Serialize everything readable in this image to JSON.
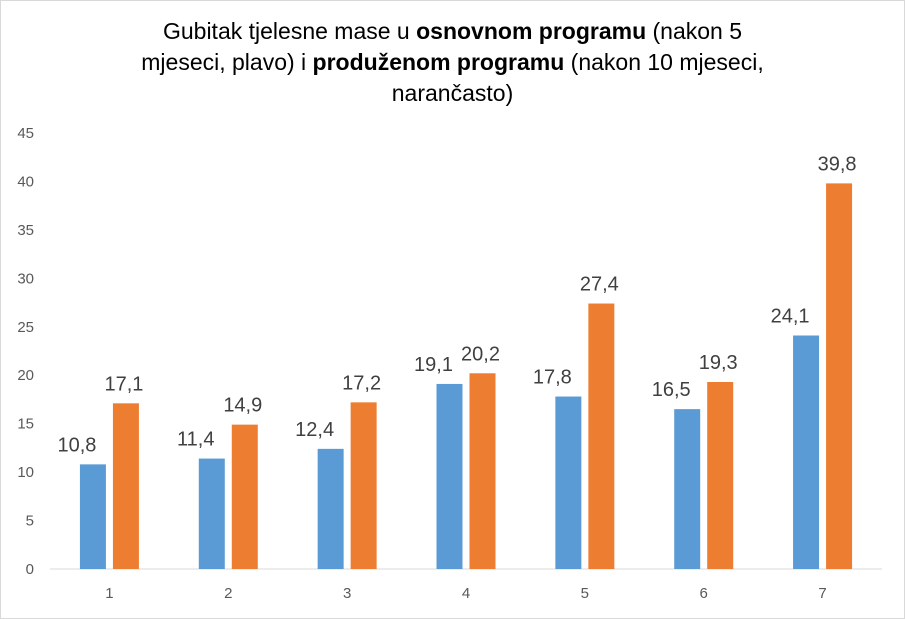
{
  "chart_data": {
    "type": "bar",
    "title": {
      "part1": "Gubitak tjelesne mase u ",
      "bold1": "osnovnom programu",
      "part2": " (nakon 5 mjeseci, plavo) i ",
      "bold2": "produženom programu",
      "part3": " (nakon 10 mjeseci, narančasto)"
    },
    "categories": [
      "1",
      "2",
      "3",
      "4",
      "5",
      "6",
      "7"
    ],
    "series": [
      {
        "color": "#5b9bd5",
        "values": [
          10.8,
          11.4,
          12.4,
          19.1,
          17.8,
          16.5,
          24.1
        ],
        "labels": [
          "10,8",
          "11,4",
          "12,4",
          "19,1",
          "17,8",
          "16,5",
          "24,1"
        ]
      },
      {
        "color": "#ed7d31",
        "values": [
          17.1,
          14.9,
          17.2,
          20.2,
          27.4,
          19.3,
          39.8
        ],
        "labels": [
          "17,1",
          "14,9",
          "17,2",
          "20,2",
          "27,4",
          "19,3",
          "39,8"
        ]
      }
    ],
    "ylim": [
      0,
      45
    ],
    "yticks": [
      "0",
      "5",
      "10",
      "15",
      "20",
      "25",
      "30",
      "35",
      "40",
      "45"
    ],
    "grid": false,
    "legend": "none",
    "xlabel": "",
    "ylabel": ""
  }
}
